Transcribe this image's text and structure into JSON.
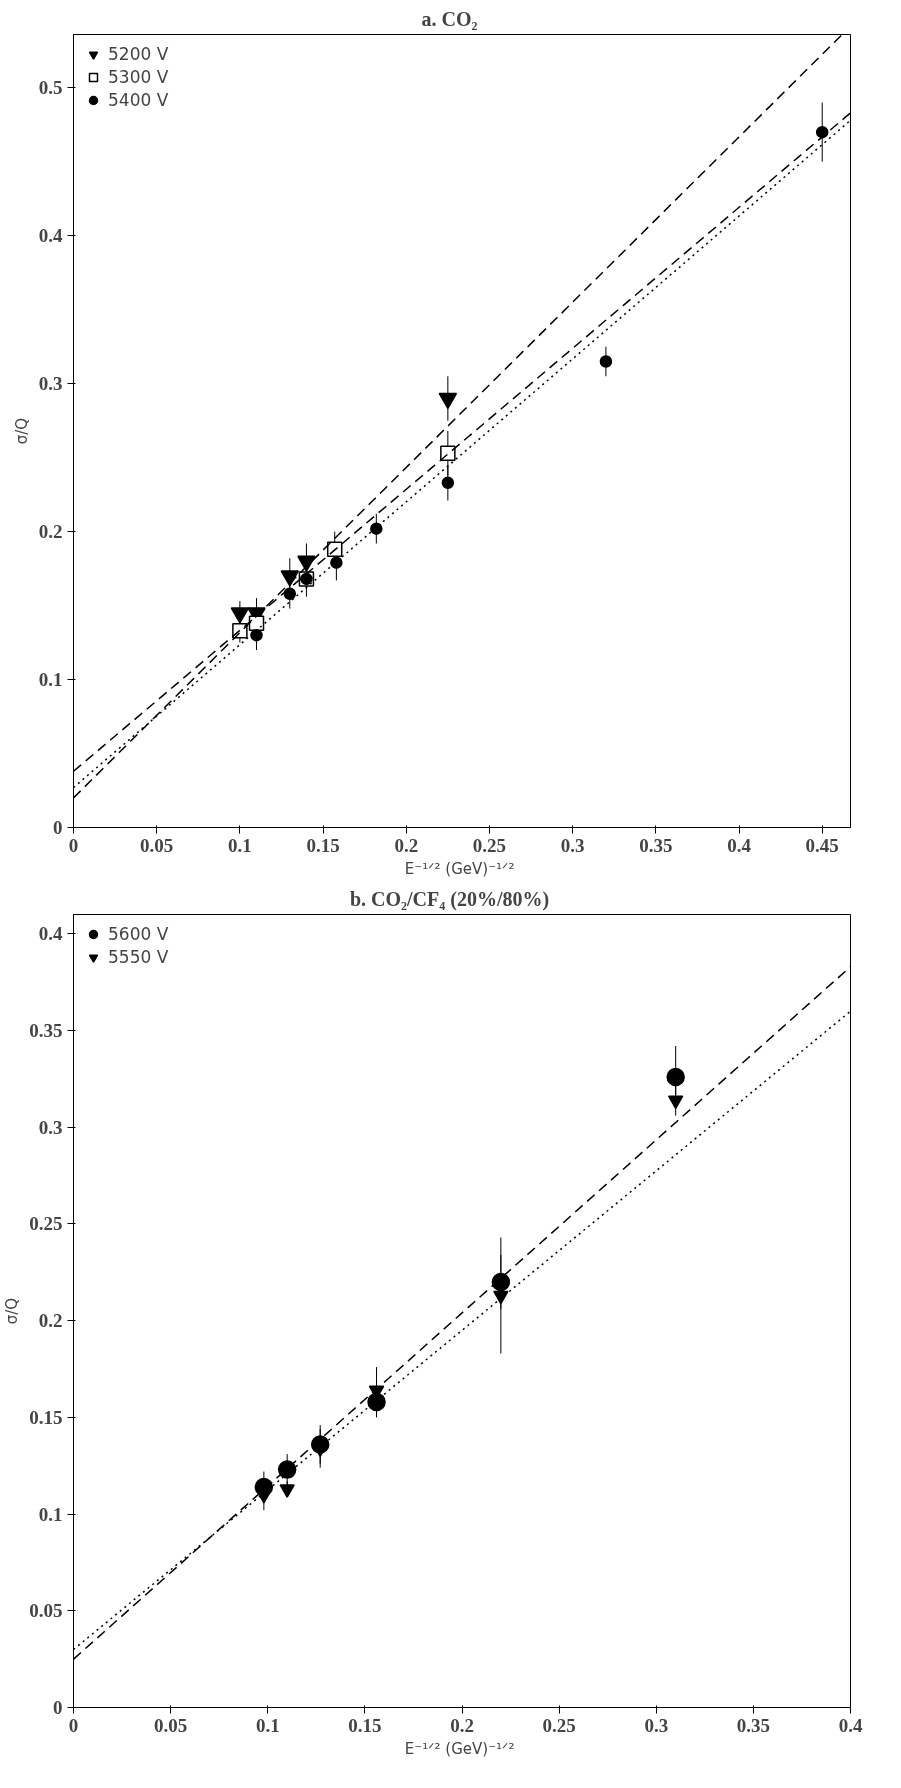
{
  "chart_data": [
    {
      "type": "scatter",
      "title": "a.      CO₂",
      "xlabel": "E⁻¹ᐟ²  (GeV)⁻¹ᐟ²",
      "ylabel": "σ/Q",
      "xlim": [
        0,
        0.467
      ],
      "ylim": [
        0,
        0.536
      ],
      "xticks": [
        0,
        0.05,
        0.1,
        0.15,
        0.2,
        0.25,
        0.3,
        0.35,
        0.4,
        0.45
      ],
      "yticks": [
        0,
        0.1,
        0.2,
        0.3,
        0.4,
        0.5
      ],
      "grid": false,
      "legend": "top left",
      "series": [
        {
          "name": "5200 V",
          "color": "#000000",
          "marker": "triangle",
          "x": [
            0.1,
            0.11,
            0.13,
            0.14,
            0.225
          ],
          "values": [
            0.145,
            0.145,
            0.17,
            0.18,
            0.29
          ],
          "errors": [
            0.008,
            0.01,
            0.012,
            0.012,
            0.015
          ]
        },
        {
          "name": "5300 V",
          "color": "#000000",
          "marker": "square",
          "x": [
            0.1,
            0.11,
            0.14,
            0.157,
            0.225
          ],
          "values": [
            0.133,
            0.138,
            0.168,
            0.188,
            0.253
          ],
          "errors": [
            0.008,
            0.01,
            0.012,
            0.012,
            0.015
          ]
        },
        {
          "name": "5400 V",
          "color": "#000000",
          "marker": "circle",
          "x": [
            0.11,
            0.13,
            0.14,
            0.158,
            0.182,
            0.225,
            0.32,
            0.45
          ],
          "values": [
            0.13,
            0.158,
            0.168,
            0.179,
            0.202,
            0.233,
            0.315,
            0.47
          ],
          "errors": [
            0.01,
            0.01,
            null,
            0.012,
            0.01,
            0.012,
            0.01,
            0.02
          ]
        },
        {
          "type": "line",
          "color": "#000000",
          "line_style": "dashed",
          "x": [
            0,
            0.462
          ],
          "values": [
            0.02,
            0.536
          ]
        },
        {
          "type": "line",
          "color": "#000000",
          "line_style": "dashed",
          "x": [
            0,
            0.467
          ],
          "values": [
            0.038,
            0.483
          ]
        },
        {
          "type": "line",
          "color": "#000000",
          "line_style": "dotted",
          "x": [
            0,
            0.467
          ],
          "values": [
            0.027,
            0.478
          ]
        }
      ]
    },
    {
      "type": "scatter",
      "title": "b.      CO₂/CF₄ (20%/80%)",
      "xlabel": "E⁻¹ᐟ²  (GeV)⁻¹ᐟ²",
      "ylabel": "σ/Q",
      "xlim": [
        0,
        0.4
      ],
      "ylim": [
        0,
        0.41
      ],
      "xticks": [
        0,
        0.05,
        0.1,
        0.15,
        0.2,
        0.25,
        0.3,
        0.35,
        0.4
      ],
      "yticks": [
        0,
        0.05,
        0.1,
        0.15,
        0.2,
        0.25,
        0.3,
        0.35,
        0.4
      ],
      "grid": false,
      "legend": "top left",
      "series": [
        {
          "name": "5600 V",
          "color": "#000000",
          "marker": "circle",
          "x": [
            0.098,
            0.11,
            0.127,
            0.156,
            0.22,
            0.31
          ],
          "values": [
            0.114,
            0.123,
            0.136,
            0.158,
            0.22,
            0.326
          ],
          "errors": [
            0.008,
            0.008,
            0.01,
            0.008,
            0.014,
            0.016
          ]
        },
        {
          "name": "5550 V",
          "color": "#000000",
          "marker": "triangle",
          "x": [
            0.098,
            0.11,
            0.127,
            0.156,
            0.22,
            0.31
          ],
          "values": [
            0.11,
            0.113,
            0.134,
            0.164,
            0.213,
            0.314
          ],
          "errors": [
            0.008,
            0.004,
            0.01,
            0.012,
            0.03,
            0.008
          ]
        },
        {
          "type": "line",
          "color": "#000000",
          "line_style": "dashed",
          "x": [
            0,
            0.4
          ],
          "values": [
            0.025,
            0.383
          ]
        },
        {
          "type": "line",
          "color": "#000000",
          "line_style": "dotted",
          "x": [
            0,
            0.4
          ],
          "values": [
            0.03,
            0.36
          ]
        }
      ]
    }
  ]
}
